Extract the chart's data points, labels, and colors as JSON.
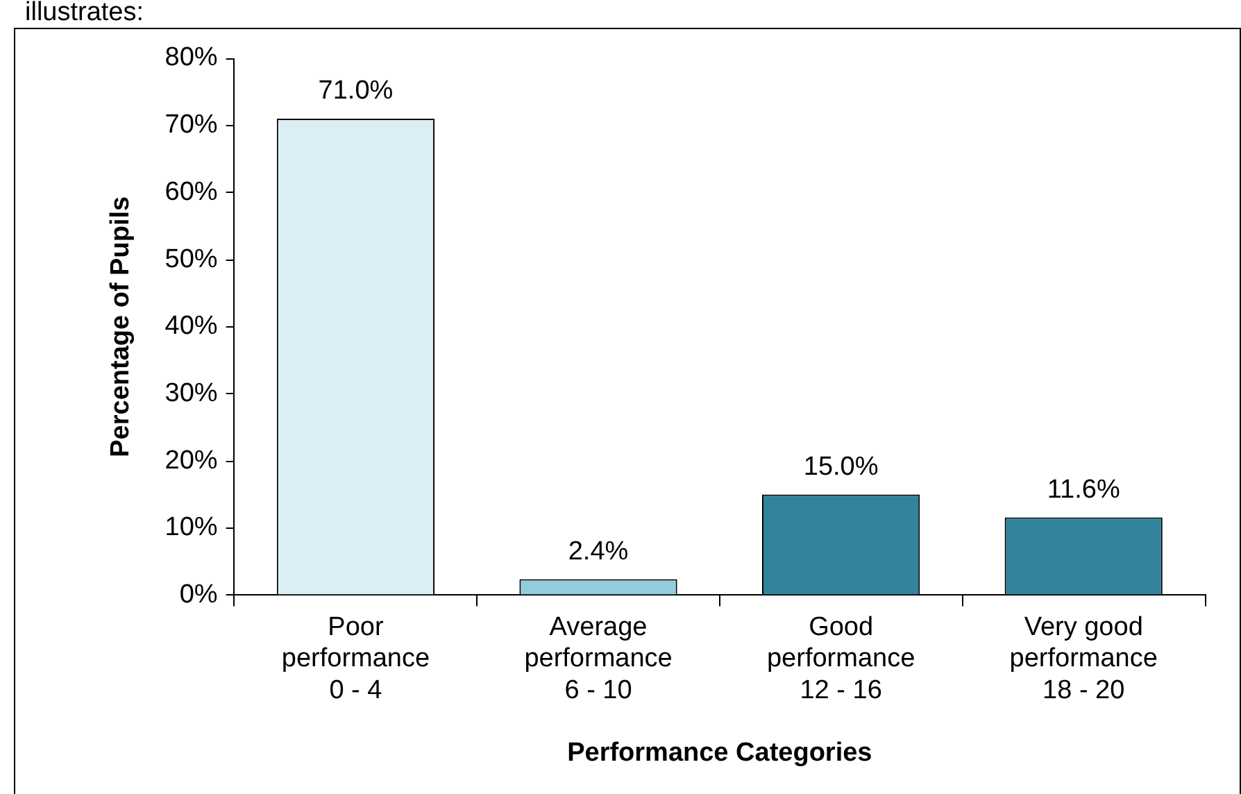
{
  "chart_data": {
    "type": "bar",
    "categories": [
      "Poor\nperformance\n0 - 4",
      "Average\nperformance\n6 - 10",
      "Good\nperformance\n12 - 16",
      "Very good\nperformance\n18 - 20"
    ],
    "values": [
      71.0,
      2.4,
      15.0,
      11.6
    ],
    "colors": [
      "#daeef3",
      "#92cddc",
      "#31849b",
      "#31849b"
    ],
    "value_labels": [
      "71.0%",
      "2.4%",
      "15.0%",
      "11.6%"
    ],
    "xlabel": "Performance Categories",
    "ylabel": "Percentage of Pupils",
    "ylim": [
      0,
      80
    ],
    "yticks": [
      {
        "value": 0,
        "label": "0%"
      },
      {
        "value": 10,
        "label": "10%"
      },
      {
        "value": 20,
        "label": "20%"
      },
      {
        "value": 30,
        "label": "30%"
      },
      {
        "value": 40,
        "label": "40%"
      },
      {
        "value": 50,
        "label": "50%"
      },
      {
        "value": 60,
        "label": "60%"
      },
      {
        "value": 70,
        "label": "70%"
      },
      {
        "value": 80,
        "label": "80%"
      }
    ],
    "annotations": [
      "illustrates:"
    ],
    "grid": false,
    "legend": false
  }
}
